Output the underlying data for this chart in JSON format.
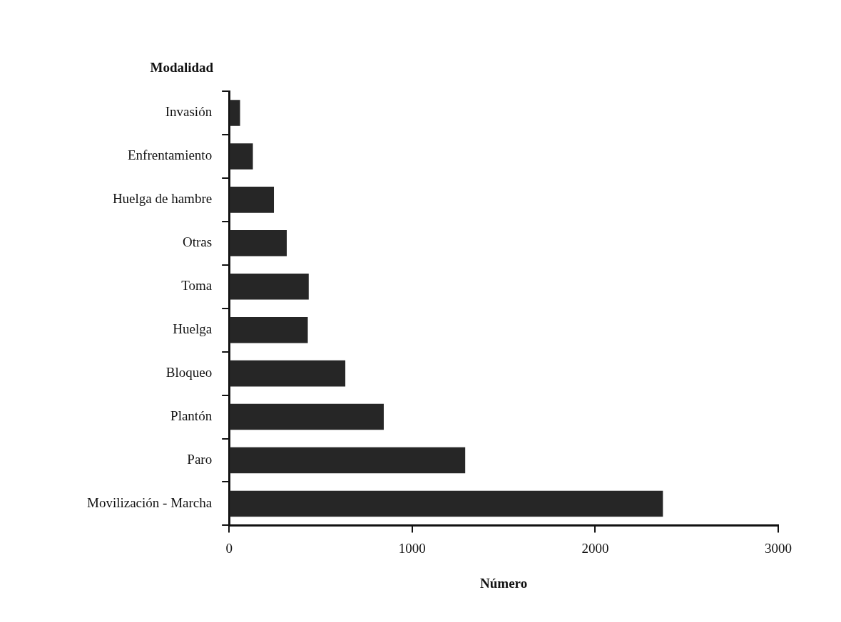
{
  "chart_data": {
    "type": "bar",
    "orientation": "horizontal",
    "xlabel": "Número",
    "ylabel": "Modalidad",
    "categories": [
      "Invasión",
      "Enfrentamiento",
      "Huelga de hambre",
      "Otras",
      "Toma",
      "Huelga",
      "Bloqueo",
      "Plantón",
      "Paro",
      "Movilización - Marcha"
    ],
    "values": [
      60,
      130,
      245,
      315,
      435,
      430,
      635,
      845,
      1290,
      2370
    ],
    "color": "#262626",
    "xlim": [
      0,
      3000
    ],
    "xticks": [
      0,
      1000,
      2000,
      3000
    ],
    "grid": false,
    "legend": false
  }
}
